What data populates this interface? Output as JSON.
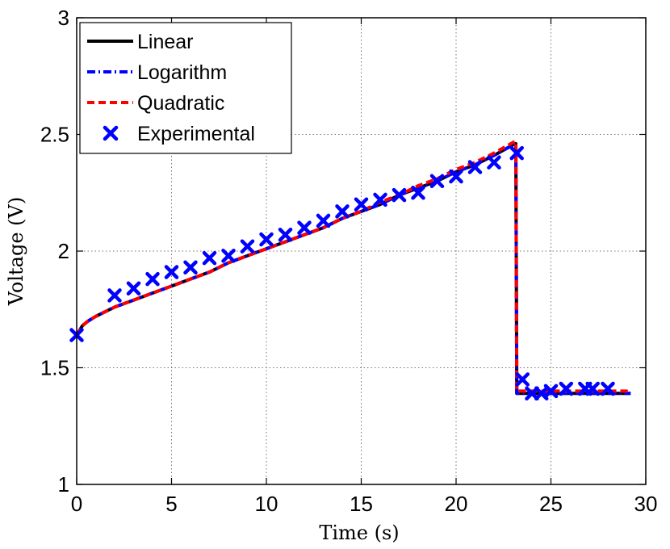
{
  "chart_data": {
    "type": "line",
    "title": "",
    "xlabel": "Time (s)",
    "ylabel": "Voltage (V)",
    "xlim": [
      0,
      30
    ],
    "ylim": [
      1,
      3
    ],
    "xticks": [
      0,
      5,
      10,
      15,
      20,
      25,
      30
    ],
    "yticks": [
      1,
      1.5,
      2,
      2.5,
      3
    ],
    "xtick_labels": [
      "0",
      "5",
      "10",
      "15",
      "20",
      "25",
      "30"
    ],
    "ytick_labels": [
      "1",
      "1.5",
      "2",
      "2.5",
      "3"
    ],
    "grid": true,
    "legend_position": "top-left",
    "series": [
      {
        "name": "Linear",
        "style": "solid",
        "color": "#000000",
        "x": [
          0,
          0.3,
          0.6,
          1.0,
          1.5,
          2,
          3,
          4,
          5,
          6,
          7,
          8,
          9,
          10,
          11,
          12,
          13,
          14,
          15,
          16,
          17,
          18,
          19,
          20,
          21,
          22,
          23.1,
          23.15,
          23.2,
          24,
          25,
          26,
          27,
          28,
          29,
          29.2
        ],
        "y": [
          1.64,
          1.68,
          1.7,
          1.72,
          1.74,
          1.76,
          1.79,
          1.82,
          1.85,
          1.88,
          1.91,
          1.95,
          1.98,
          2.01,
          2.04,
          2.07,
          2.1,
          2.14,
          2.17,
          2.2,
          2.24,
          2.27,
          2.3,
          2.34,
          2.37,
          2.41,
          2.46,
          2.46,
          1.39,
          1.39,
          1.39,
          1.39,
          1.39,
          1.39,
          1.39,
          1.39
        ]
      },
      {
        "name": "Logarithm",
        "style": "dashdot",
        "color": "#0000ff",
        "x": [
          0,
          0.3,
          0.6,
          1.0,
          1.5,
          2,
          3,
          4,
          5,
          6,
          7,
          8,
          9,
          10,
          11,
          12,
          13,
          14,
          15,
          16,
          17,
          18,
          19,
          20,
          21,
          22,
          23.1,
          23.15,
          23.2,
          24,
          25,
          26,
          27,
          28,
          29,
          29.2
        ],
        "y": [
          1.64,
          1.68,
          1.7,
          1.72,
          1.74,
          1.76,
          1.79,
          1.82,
          1.85,
          1.88,
          1.91,
          1.95,
          1.98,
          2.01,
          2.04,
          2.07,
          2.1,
          2.14,
          2.17,
          2.2,
          2.24,
          2.27,
          2.3,
          2.34,
          2.37,
          2.41,
          2.46,
          2.46,
          1.39,
          1.39,
          1.39,
          1.39,
          1.39,
          1.39,
          1.39,
          1.39
        ]
      },
      {
        "name": "Quadratic",
        "style": "dashed",
        "color": "#ff0000",
        "x": [
          0,
          0.3,
          0.6,
          1.0,
          1.5,
          2,
          3,
          4,
          5,
          6,
          7,
          8,
          9,
          10,
          11,
          12,
          13,
          14,
          15,
          16,
          17,
          18,
          19,
          20,
          21,
          22,
          23.1,
          23.15,
          23.2,
          24,
          25,
          26,
          27,
          28,
          29,
          29.2
        ],
        "y": [
          1.64,
          1.68,
          1.7,
          1.72,
          1.74,
          1.76,
          1.79,
          1.82,
          1.85,
          1.88,
          1.91,
          1.95,
          1.98,
          2.01,
          2.04,
          2.07,
          2.1,
          2.14,
          2.17,
          2.21,
          2.24,
          2.28,
          2.31,
          2.35,
          2.38,
          2.42,
          2.47,
          2.47,
          1.4,
          1.4,
          1.4,
          1.4,
          1.4,
          1.4,
          1.4,
          1.39
        ]
      },
      {
        "name": "Experimental",
        "style": "markers",
        "marker": "x",
        "color": "#0000ff",
        "x": [
          0,
          2,
          3,
          4,
          5,
          6,
          7,
          8,
          9,
          10,
          11,
          12,
          13,
          14,
          15,
          16,
          17,
          18,
          19,
          20,
          21,
          22,
          23.2,
          23.5,
          24,
          24.5,
          25,
          25.8,
          26.8,
          27.2,
          28
        ],
        "y": [
          1.64,
          1.81,
          1.84,
          1.88,
          1.91,
          1.93,
          1.97,
          1.98,
          2.02,
          2.05,
          2.07,
          2.1,
          2.13,
          2.17,
          2.2,
          2.22,
          2.24,
          2.25,
          2.3,
          2.32,
          2.36,
          2.38,
          2.42,
          1.45,
          1.39,
          1.39,
          1.4,
          1.41,
          1.41,
          1.41,
          1.41
        ]
      }
    ]
  }
}
